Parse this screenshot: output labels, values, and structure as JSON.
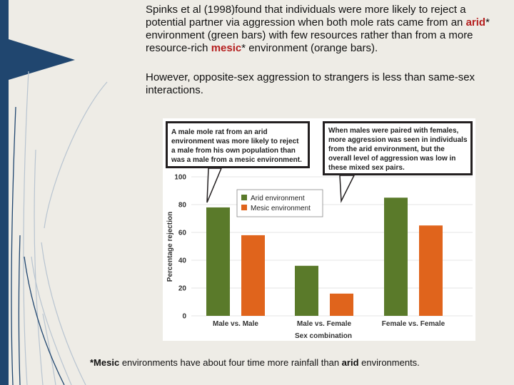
{
  "slide": {
    "para1": {
      "part1": "Spinks et al (1998)found that individuals were more likely to reject a potential partner via aggression when both mole rats came from an",
      "arid_word": "arid",
      "part2": "* environment (green bars) with few resources rather than from a more resource-rich",
      "mesic_word": "mesic",
      "part3": "* environment (orange bars)."
    },
    "para2": "However, opposite-sex aggression to strangers is less than same-sex interactions.",
    "footnote": {
      "mesic_bold": "*Mesic",
      "mid": "environments have about four time more rainfall than",
      "arid_bold": "arid",
      "end": "environments."
    }
  },
  "colors": {
    "arid": "#5a7a2a",
    "mesic": "#e0641c",
    "accent_bar": "#20466f",
    "callout_bg": "#231f20"
  },
  "chart_data": {
    "type": "bar",
    "categories": [
      "Male vs. Male",
      "Male vs. Female",
      "Female vs. Female"
    ],
    "series": [
      {
        "name": "Arid environment",
        "values": [
          78,
          36,
          85
        ]
      },
      {
        "name": "Mesic environment",
        "values": [
          58,
          16,
          65
        ]
      }
    ],
    "xlabel": "Sex combination",
    "ylabel": "Percentage rejection",
    "ylim": [
      0,
      100
    ],
    "yticks": [
      0,
      20,
      40,
      60,
      80,
      100
    ],
    "legend_position": "top-left",
    "annotations": [
      {
        "lines": [
          "A male mole rat from an arid",
          "environment was more likely to reject",
          "a male from his own population than",
          "was a male from a mesic environment."
        ]
      },
      {
        "lines": [
          "When males were paired with females,",
          "more aggression was seen in individuals",
          "from the arid environment, but the",
          "overall level of aggression was low in",
          "these mixed sex pairs."
        ]
      }
    ]
  }
}
